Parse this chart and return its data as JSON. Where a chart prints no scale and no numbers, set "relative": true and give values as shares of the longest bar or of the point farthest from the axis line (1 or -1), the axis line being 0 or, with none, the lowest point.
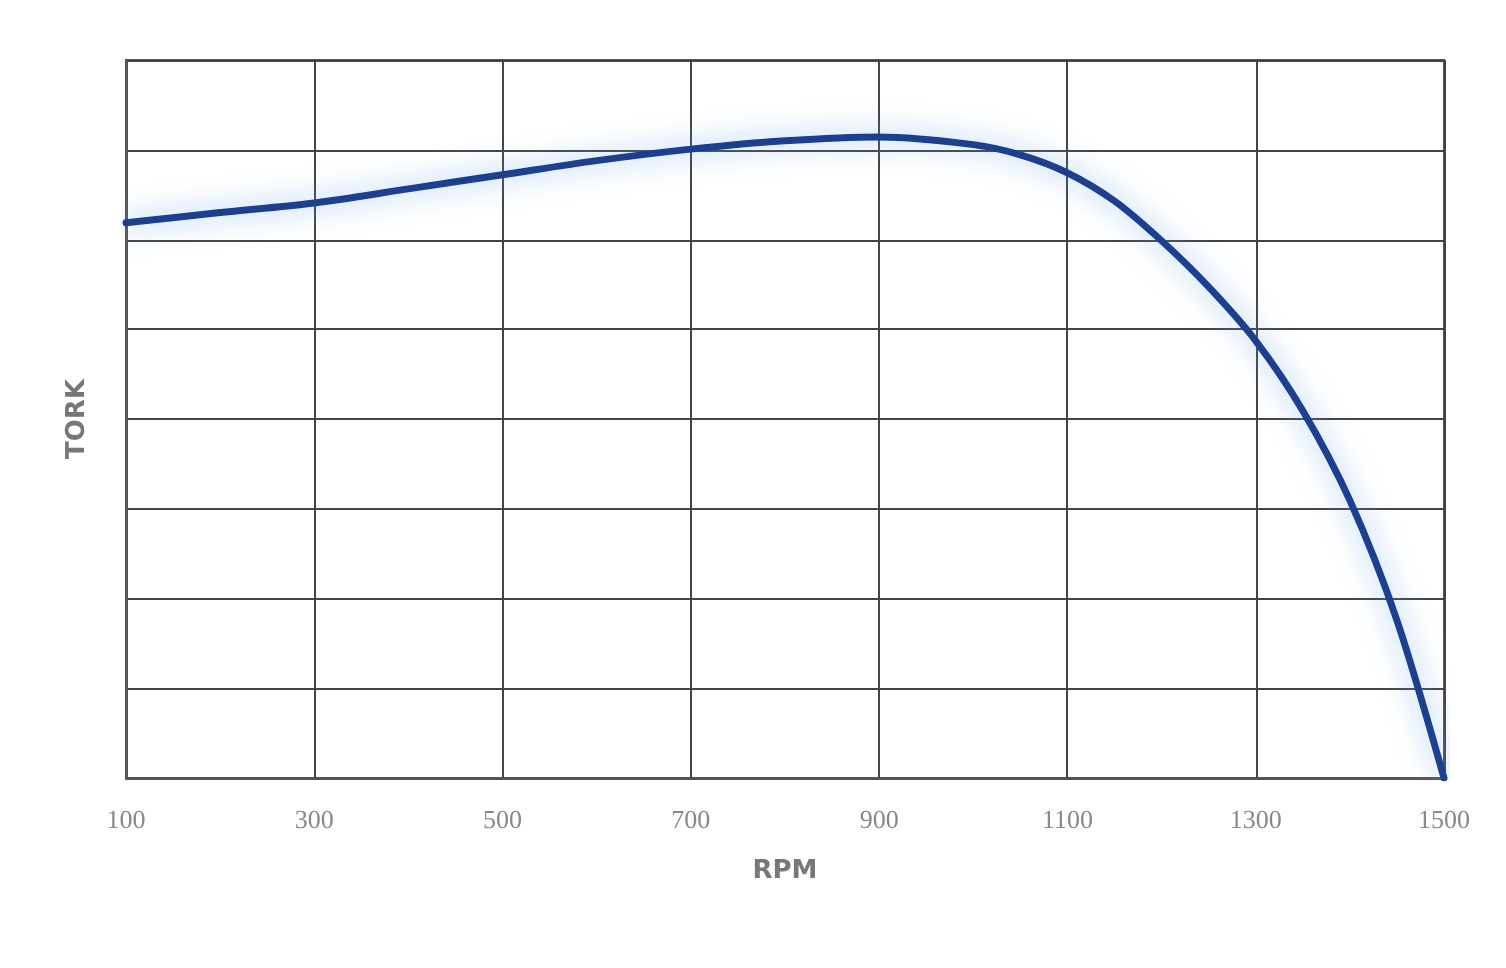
{
  "chart_data": {
    "type": "line",
    "relative": true,
    "xlabel": "RPM",
    "ylabel": "TORK",
    "x": [
      100,
      200,
      300,
      400,
      500,
      600,
      700,
      800,
      900,
      1000,
      1050,
      1100,
      1150,
      1200,
      1250,
      1300,
      1350,
      1400,
      1450,
      1500
    ],
    "series": [
      {
        "color": "#1a3f8f",
        "values": [
          0.866,
          0.882,
          0.897,
          0.919,
          0.941,
          0.963,
          0.981,
          0.994,
          1.0,
          0.988,
          0.972,
          0.944,
          0.9,
          0.838,
          0.766,
          0.682,
          0.573,
          0.433,
          0.246,
          0
        ]
      }
    ],
    "xlim": [
      100,
      1500
    ],
    "xticks": [
      100,
      300,
      500,
      700,
      900,
      1100,
      1300,
      1500
    ],
    "grid": true,
    "marker": "none",
    "line_style": "solid"
  }
}
